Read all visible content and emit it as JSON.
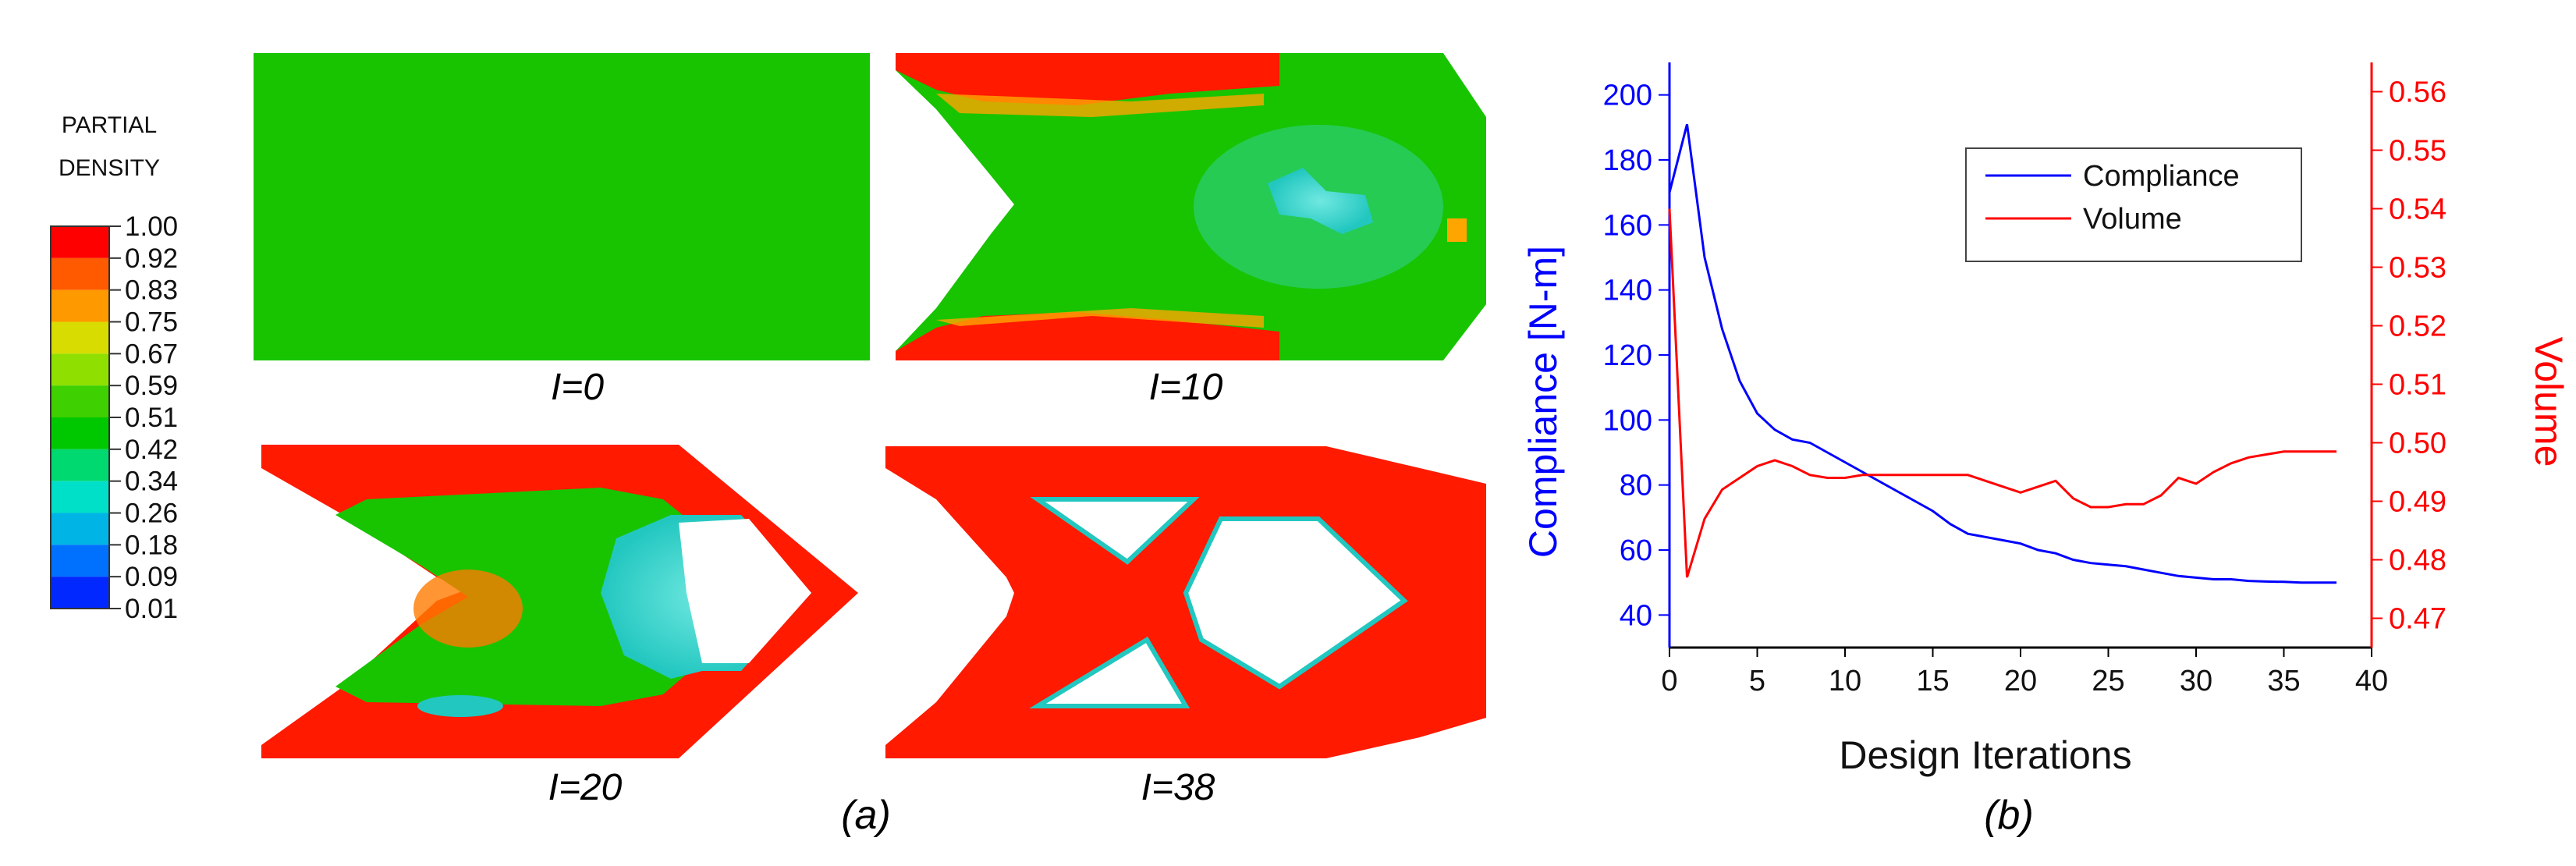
{
  "panel_a": {
    "legend_title_line1": "PARTIAL",
    "legend_title_line2": "DENSITY",
    "legend": [
      {
        "value": "1.00",
        "color": "#ff0000"
      },
      {
        "value": "0.92",
        "color": "#ff5a00"
      },
      {
        "value": "0.83",
        "color": "#ff9900"
      },
      {
        "value": "0.75",
        "color": "#d8dc00"
      },
      {
        "value": "0.67",
        "color": "#8fe000"
      },
      {
        "value": "0.59",
        "color": "#3ed000"
      },
      {
        "value": "0.51",
        "color": "#00c800"
      },
      {
        "value": "0.42",
        "color": "#00d870"
      },
      {
        "value": "0.34",
        "color": "#00e0c8"
      },
      {
        "value": "0.26",
        "color": "#00b4e6"
      },
      {
        "value": "0.18",
        "color": "#0070ff"
      },
      {
        "value": "0.09",
        "color": "#0028ff"
      },
      {
        "value": "0.01",
        "color": "#0000cc"
      }
    ],
    "snapshots": [
      {
        "caption": "I=0"
      },
      {
        "caption": "I=10"
      },
      {
        "caption": "I=20"
      },
      {
        "caption": "I=38"
      }
    ],
    "caption": "(a)"
  },
  "chart_data": {
    "type": "line",
    "caption": "(b)",
    "xlabel": "Design Iterations",
    "ylabel": "Compliance [N-m]",
    "y2label": "Volume",
    "xlim": [
      0,
      40
    ],
    "ylim": [
      30,
      210
    ],
    "y2lim": [
      0.465,
      0.565
    ],
    "xticks": [
      0,
      5,
      10,
      15,
      20,
      25,
      30,
      35,
      40
    ],
    "yticks": [
      40,
      60,
      80,
      100,
      120,
      140,
      160,
      180,
      200
    ],
    "y2ticks": [
      0.47,
      0.48,
      0.49,
      0.5,
      0.51,
      0.52,
      0.53,
      0.54,
      0.55,
      0.56
    ],
    "legend_position": "top-right",
    "series": [
      {
        "name": "Compliance",
        "axis": "left",
        "color": "#0000ff",
        "x": [
          0,
          1,
          2,
          3,
          4,
          5,
          6,
          7,
          8,
          9,
          10,
          11,
          12,
          13,
          14,
          15,
          16,
          17,
          18,
          19,
          20,
          21,
          22,
          23,
          24,
          25,
          26,
          27,
          28,
          29,
          30,
          31,
          32,
          33,
          34,
          35,
          36,
          37,
          38
        ],
        "y": [
          170,
          191,
          150,
          128,
          112,
          102,
          97,
          94,
          93,
          90,
          87,
          84,
          81,
          78,
          75,
          72,
          68,
          65,
          64,
          63,
          62,
          60,
          59,
          57,
          56,
          55.5,
          55,
          54,
          53,
          52,
          51.5,
          51,
          51,
          50.5,
          50.3,
          50.2,
          50,
          50,
          50
        ]
      },
      {
        "name": "Volume",
        "axis": "right",
        "color": "#ff0000",
        "x": [
          0,
          1,
          2,
          3,
          4,
          5,
          6,
          7,
          8,
          9,
          10,
          11,
          12,
          13,
          14,
          15,
          16,
          17,
          18,
          19,
          20,
          21,
          22,
          23,
          24,
          25,
          26,
          27,
          28,
          29,
          30,
          31,
          32,
          33,
          34,
          35,
          36,
          37,
          38
        ],
        "y": [
          0.54,
          0.477,
          0.487,
          0.492,
          0.494,
          0.496,
          0.497,
          0.496,
          0.4945,
          0.494,
          0.494,
          0.4945,
          0.4945,
          0.4945,
          0.4945,
          0.4945,
          0.4945,
          0.4945,
          0.4935,
          0.4925,
          0.4915,
          0.4925,
          0.4935,
          0.4905,
          0.489,
          0.489,
          0.4895,
          0.4895,
          0.491,
          0.494,
          0.493,
          0.495,
          0.4965,
          0.4975,
          0.498,
          0.4985,
          0.4985,
          0.4985,
          0.4985
        ]
      }
    ]
  }
}
